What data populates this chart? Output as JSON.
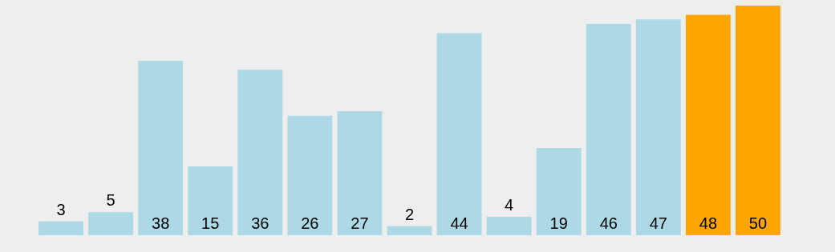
{
  "chart_data": {
    "type": "bar",
    "categories": [
      null,
      null,
      null,
      null,
      null,
      null,
      null,
      null,
      null,
      null,
      null,
      null,
      null,
      null,
      null
    ],
    "values": [
      3,
      5,
      38,
      15,
      36,
      26,
      27,
      2,
      44,
      4,
      19,
      46,
      47,
      48,
      50
    ],
    "colors": [
      "#add8e6",
      "#add8e6",
      "#add8e6",
      "#add8e6",
      "#add8e6",
      "#add8e6",
      "#add8e6",
      "#add8e6",
      "#add8e6",
      "#add8e6",
      "#add8e6",
      "#add8e6",
      "#add8e6",
      "#ffa500",
      "#ffa500"
    ],
    "data_labels": true,
    "legend": false
  }
}
